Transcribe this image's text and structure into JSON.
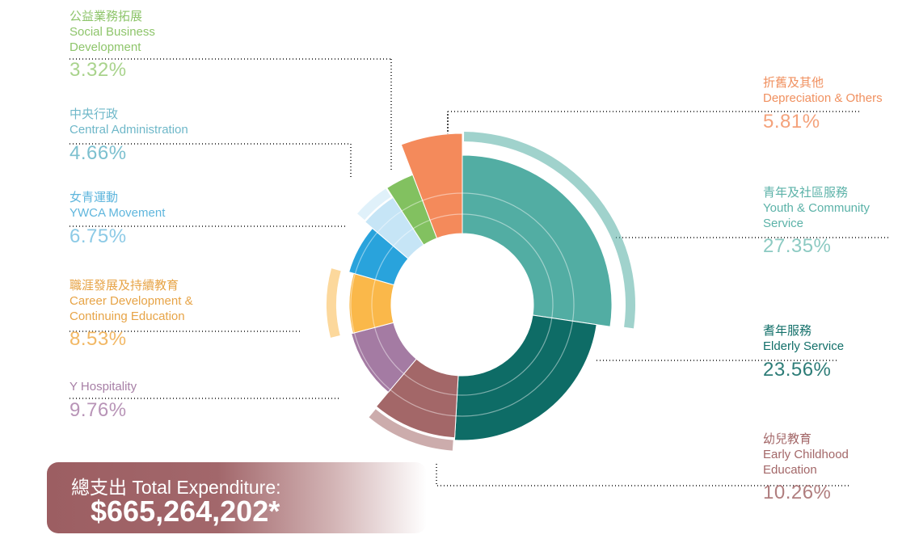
{
  "chart_data": {
    "type": "pie",
    "title": "",
    "total_label": "總支出 Total Expenditure:",
    "total_value": "$665,264,202*",
    "slices": [
      {
        "zh": "青年及社區服務",
        "en": "Youth & Community Service",
        "pct_text": "27.35%",
        "value": 27.35,
        "color": "#52ada3",
        "label_color": "#5bb2a8"
      },
      {
        "zh": "耆年服務",
        "en": "Elderly Service",
        "pct_text": "23.56%",
        "value": 23.56,
        "color": "#0e6c66",
        "label_color": "#13706a"
      },
      {
        "zh": "幼兒教育",
        "en": "Early Childhood Education",
        "pct_text": "10.26%",
        "value": 10.26,
        "color": "#a36768",
        "label_color": "#a36768"
      },
      {
        "zh": "",
        "en": "Y Hospitality",
        "pct_text": "9.76%",
        "value": 9.76,
        "color": "#a47ba3",
        "label_color": "#a77fa6"
      },
      {
        "zh": "職涯發展及持續教育",
        "en": "Career Development & Continuing Education",
        "pct_text": "8.53%",
        "value": 8.53,
        "color": "#fab84a",
        "label_color": "#e7a447"
      },
      {
        "zh": "女青運動",
        "en": "YWCA Movement",
        "pct_text": "6.75%",
        "value": 6.75,
        "color": "#29a3dc",
        "label_color": "#5fb6dd"
      },
      {
        "zh": "中央行政",
        "en": "Central Administration",
        "pct_text": "4.66%",
        "value": 4.66,
        "color": "#c6e5f6",
        "label_color": "#6fb8c9"
      },
      {
        "zh": "公益業務拓展",
        "en": "Social Business Development",
        "pct_text": "3.32%",
        "value": 3.32,
        "color": "#82c160",
        "label_color": "#8ec56b"
      },
      {
        "zh": "折舊及其他",
        "en": "Depreciation & Others",
        "pct_text": "5.81%",
        "value": 5.81,
        "color": "#f48a5b",
        "label_color": "#f0905f"
      }
    ]
  }
}
